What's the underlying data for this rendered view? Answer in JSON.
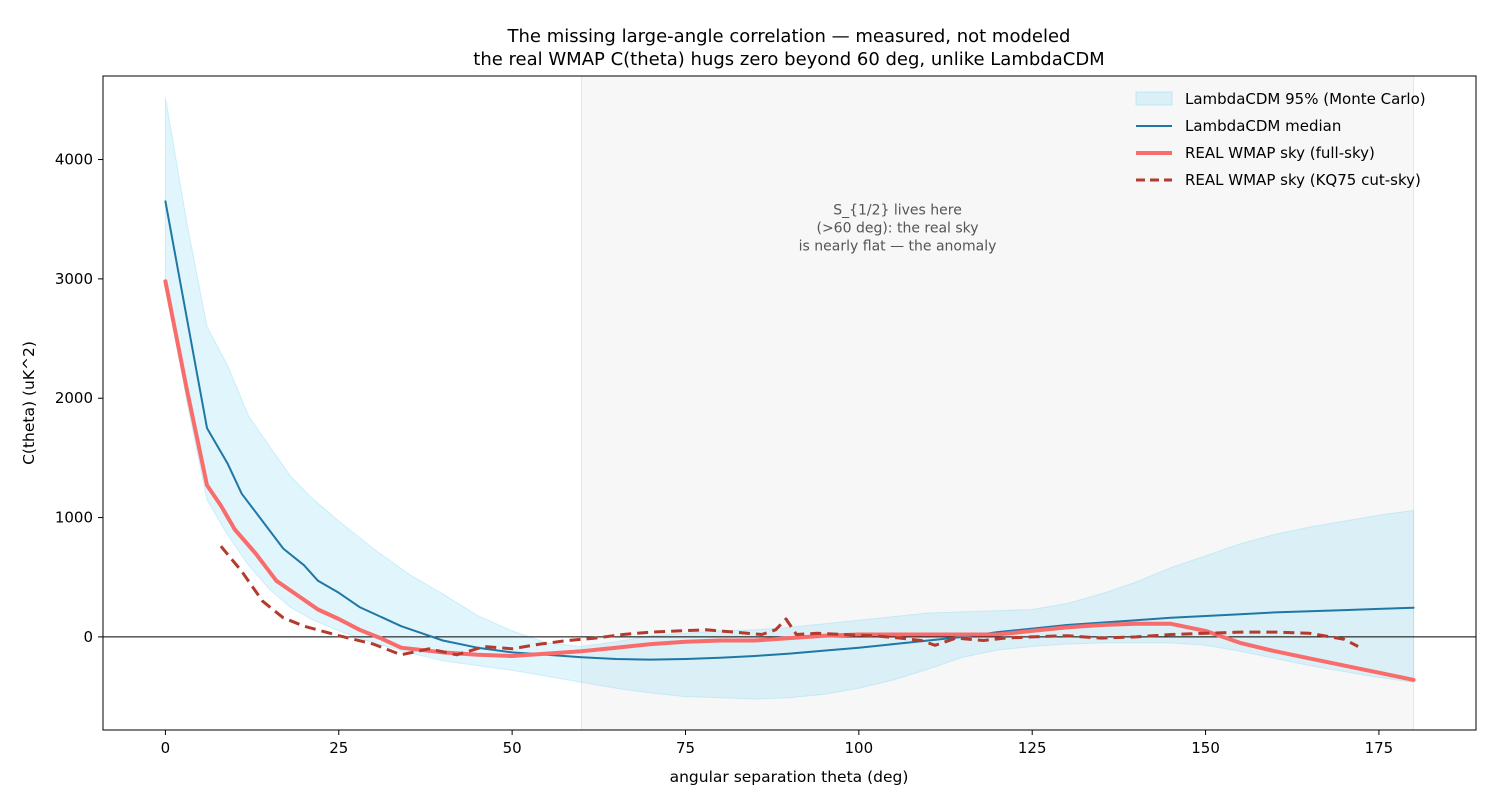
{
  "chart_data": {
    "type": "line",
    "title_line1": "The missing large-angle correlation — measured, not modeled",
    "title_line2": "the real WMAP C(theta) hugs zero beyond 60 deg, unlike LambdaCDM",
    "xlabel": "angular separation  theta  (deg)",
    "ylabel": "C(theta)  (uK^2)",
    "xlim": [
      -9,
      189
    ],
    "ylim": [
      -780,
      4700
    ],
    "xticks": [
      0,
      25,
      50,
      75,
      100,
      125,
      150,
      175
    ],
    "yticks": [
      0,
      1000,
      2000,
      3000,
      4000
    ],
    "grid": false,
    "zero_line": 0,
    "legend_position": "top-right",
    "shaded_region": {
      "x_from": 60,
      "x_to": 180,
      "color": "#f7f7f7"
    },
    "annotation": {
      "x": 120,
      "y": 3540,
      "lines": [
        "S_{1/2} lives here",
        "(>60 deg): the real sky",
        "is nearly flat — the anomaly"
      ]
    },
    "band": {
      "name": "LambdaCDM 95% (Monte Carlo)",
      "color": "#87d9f2",
      "x": [
        0,
        3,
        6,
        9,
        12,
        15,
        18,
        21,
        25,
        30,
        35,
        40,
        45,
        50,
        55,
        60,
        65,
        70,
        75,
        80,
        85,
        90,
        95,
        100,
        105,
        110,
        115,
        120,
        125,
        130,
        135,
        140,
        145,
        150,
        155,
        160,
        165,
        170,
        175,
        180
      ],
      "upper": [
        4520,
        3500,
        2600,
        2270,
        1850,
        1600,
        1350,
        1170,
        970,
        740,
        530,
        360,
        180,
        50,
        -50,
        -80,
        -40,
        10,
        30,
        50,
        60,
        80,
        110,
        140,
        170,
        200,
        210,
        220,
        230,
        280,
        360,
        460,
        580,
        680,
        780,
        860,
        920,
        970,
        1020,
        1060
      ],
      "lower": [
        3000,
        2000,
        1150,
        850,
        600,
        400,
        250,
        150,
        50,
        -50,
        -130,
        -200,
        -240,
        -280,
        -330,
        -380,
        -430,
        -470,
        -500,
        -510,
        -520,
        -510,
        -480,
        -430,
        -360,
        -270,
        -170,
        -110,
        -80,
        -60,
        -50,
        -50,
        -50,
        -70,
        -120,
        -180,
        -240,
        -290,
        -340,
        -380
      ]
    },
    "series": [
      {
        "name": "LambdaCDM median",
        "color": "#1f77a4",
        "width": 2,
        "dash": "",
        "x": [
          0,
          3,
          6,
          9,
          11,
          14,
          17,
          20,
          22,
          25,
          28,
          31,
          34,
          37,
          40,
          45,
          50,
          55,
          60,
          65,
          70,
          75,
          80,
          85,
          90,
          95,
          100,
          105,
          110,
          115,
          120,
          125,
          130,
          135,
          140,
          145,
          150,
          155,
          160,
          165,
          170,
          175,
          180
        ],
        "y": [
          3650,
          2700,
          1750,
          1450,
          1200,
          970,
          740,
          600,
          470,
          370,
          250,
          170,
          90,
          30,
          -30,
          -90,
          -130,
          -150,
          -170,
          -185,
          -190,
          -185,
          -175,
          -160,
          -140,
          -115,
          -90,
          -60,
          -30,
          0,
          40,
          70,
          100,
          120,
          140,
          160,
          175,
          190,
          205,
          215,
          225,
          235,
          245
        ]
      },
      {
        "name": "REAL WMAP sky (full-sky)",
        "color": "#f96c6c",
        "width": 4,
        "dash": "",
        "x": [
          0,
          3,
          6,
          8,
          10,
          13,
          16,
          19,
          22,
          25,
          28,
          31,
          34,
          40,
          45,
          50,
          55,
          60,
          65,
          70,
          75,
          80,
          85,
          90,
          95,
          100,
          110,
          120,
          125,
          130,
          135,
          140,
          145,
          150,
          155,
          160,
          165,
          170,
          175,
          180
        ],
        "y": [
          2980,
          2100,
          1270,
          1100,
          900,
          700,
          470,
          350,
          230,
          150,
          60,
          -10,
          -90,
          -130,
          -150,
          -160,
          -140,
          -120,
          -90,
          -60,
          -40,
          -30,
          -30,
          -10,
          10,
          20,
          20,
          20,
          50,
          80,
          100,
          110,
          110,
          50,
          -50,
          -120,
          -180,
          -240,
          -300,
          -360
        ]
      },
      {
        "name": "REAL WMAP sky (KQ75 cut-sky)",
        "color": "#b33a2d",
        "width": 3,
        "dash": "11 6",
        "x": [
          8,
          11,
          14,
          17,
          20,
          25,
          30,
          34,
          38,
          42,
          46,
          50,
          54,
          58,
          62,
          66,
          70,
          74,
          78,
          82,
          86,
          88,
          89.5,
          91,
          94,
          98,
          102,
          106,
          109,
          111,
          114,
          118,
          121,
          125,
          130,
          135,
          140,
          145,
          150,
          155,
          160,
          165,
          170,
          172
        ],
        "y": [
          760,
          550,
          300,
          160,
          90,
          10,
          -60,
          -150,
          -100,
          -150,
          -80,
          -100,
          -60,
          -30,
          -10,
          20,
          40,
          50,
          60,
          40,
          20,
          60,
          150,
          20,
          30,
          20,
          10,
          -10,
          -30,
          -70,
          -10,
          -30,
          -10,
          0,
          10,
          -10,
          0,
          20,
          30,
          40,
          40,
          30,
          -20,
          -80
        ]
      }
    ]
  }
}
